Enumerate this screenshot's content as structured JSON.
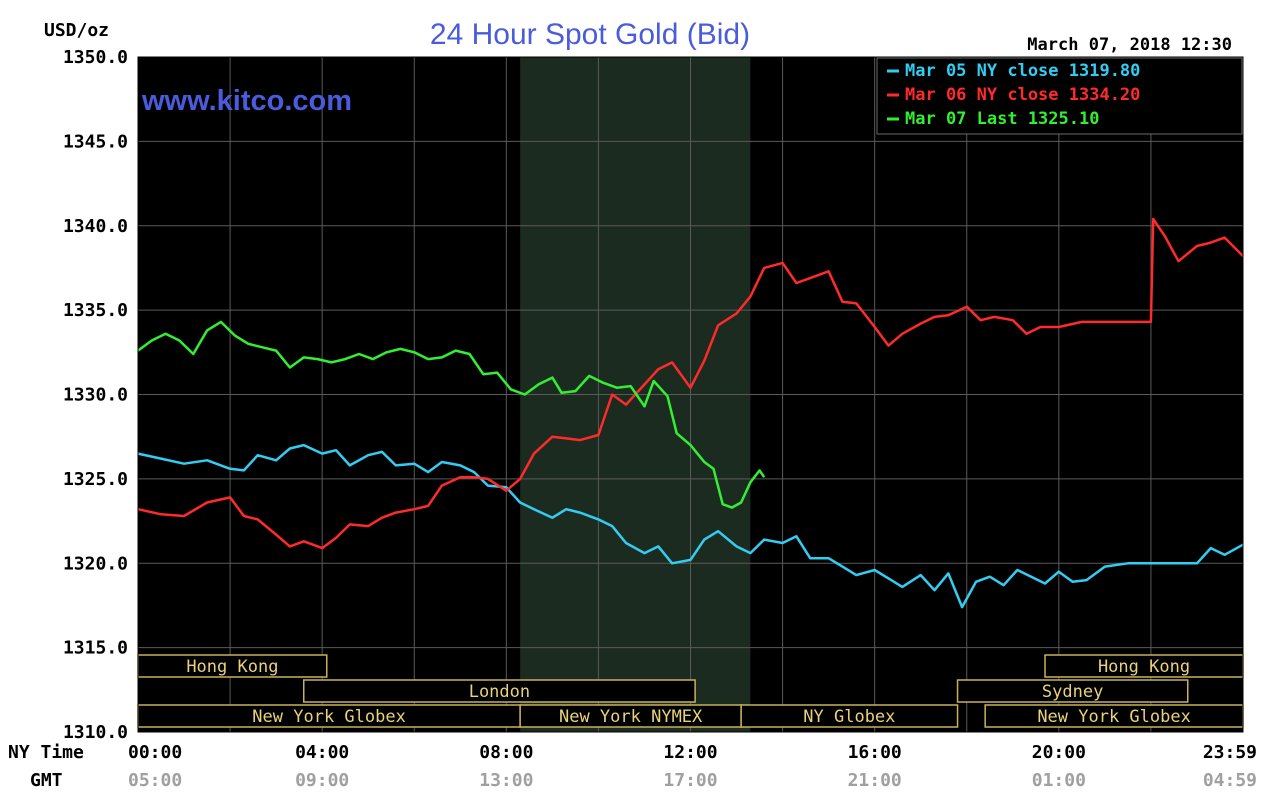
{
  "chart_data": {
    "type": "line",
    "title": "24 Hour Spot Gold (Bid)",
    "watermark": "www.kitco.com",
    "ylabel": "USD/oz",
    "date_label": "March 07, 2018 12:30",
    "ylim": [
      1310,
      1350
    ],
    "y_ticks": [
      "1350.0",
      "1345.0",
      "1340.0",
      "1335.0",
      "1330.0",
      "1325.0",
      "1320.0",
      "1315.0",
      "1310.0"
    ],
    "xlim": [
      0,
      24
    ],
    "x_row_labels": [
      "NY Time",
      "GMT"
    ],
    "x_ticks_ny": [
      "00:00",
      "04:00",
      "08:00",
      "12:00",
      "16:00",
      "20:00",
      "23:59"
    ],
    "x_ticks_gmt": [
      "05:00",
      "09:00",
      "13:00",
      "17:00",
      "21:00",
      "01:00",
      "04:59"
    ],
    "nymex_shade": [
      8.3,
      13.3
    ],
    "grid": true,
    "legend_position": "top-right",
    "series": [
      {
        "name": "Mar 05 NY close 1319.80",
        "color": "#33ccf2",
        "points": [
          [
            0,
            1326.5
          ],
          [
            0.5,
            1326.2
          ],
          [
            1,
            1325.9
          ],
          [
            1.5,
            1326.1
          ],
          [
            2,
            1325.6
          ],
          [
            2.3,
            1325.5
          ],
          [
            2.6,
            1326.4
          ],
          [
            3,
            1326.1
          ],
          [
            3.3,
            1326.8
          ],
          [
            3.6,
            1327.0
          ],
          [
            4,
            1326.5
          ],
          [
            4.3,
            1326.7
          ],
          [
            4.6,
            1325.8
          ],
          [
            5,
            1326.4
          ],
          [
            5.3,
            1326.6
          ],
          [
            5.6,
            1325.8
          ],
          [
            6,
            1325.9
          ],
          [
            6.3,
            1325.4
          ],
          [
            6.6,
            1326.0
          ],
          [
            7,
            1325.8
          ],
          [
            7.3,
            1325.4
          ],
          [
            7.6,
            1324.6
          ],
          [
            8,
            1324.5
          ],
          [
            8.3,
            1323.6
          ],
          [
            8.6,
            1323.2
          ],
          [
            9,
            1322.7
          ],
          [
            9.3,
            1323.2
          ],
          [
            9.6,
            1323.0
          ],
          [
            10,
            1322.6
          ],
          [
            10.3,
            1322.2
          ],
          [
            10.6,
            1321.2
          ],
          [
            11,
            1320.6
          ],
          [
            11.3,
            1321.0
          ],
          [
            11.6,
            1320.0
          ],
          [
            12,
            1320.2
          ],
          [
            12.3,
            1321.4
          ],
          [
            12.6,
            1321.9
          ],
          [
            13,
            1321.0
          ],
          [
            13.3,
            1320.6
          ],
          [
            13.6,
            1321.4
          ],
          [
            14,
            1321.2
          ],
          [
            14.3,
            1321.6
          ],
          [
            14.6,
            1320.3
          ],
          [
            15,
            1320.3
          ],
          [
            15.3,
            1319.8
          ],
          [
            15.6,
            1319.3
          ],
          [
            16,
            1319.6
          ],
          [
            16.3,
            1319.1
          ],
          [
            16.6,
            1318.6
          ],
          [
            17,
            1319.3
          ],
          [
            17.3,
            1318.4
          ],
          [
            17.6,
            1319.4
          ],
          [
            17.9,
            1317.4
          ],
          [
            18.2,
            1318.9
          ],
          [
            18.5,
            1319.2
          ],
          [
            18.8,
            1318.7
          ],
          [
            19.1,
            1319.6
          ],
          [
            19.4,
            1319.2
          ],
          [
            19.7,
            1318.8
          ],
          [
            20,
            1319.5
          ],
          [
            20.3,
            1318.9
          ],
          [
            20.6,
            1319.0
          ],
          [
            21,
            1319.8
          ],
          [
            21.5,
            1320.0
          ],
          [
            22,
            1320.0
          ],
          [
            22.5,
            1320.0
          ],
          [
            23,
            1320.0
          ],
          [
            23.3,
            1320.9
          ],
          [
            23.6,
            1320.5
          ],
          [
            24,
            1321.1
          ]
        ]
      },
      {
        "name": "Mar 06 NY close 1334.20",
        "color": "#ff2a2a",
        "points": [
          [
            0,
            1323.2
          ],
          [
            0.5,
            1322.9
          ],
          [
            1,
            1322.8
          ],
          [
            1.5,
            1323.6
          ],
          [
            2,
            1323.9
          ],
          [
            2.3,
            1322.8
          ],
          [
            2.6,
            1322.6
          ],
          [
            3,
            1321.7
          ],
          [
            3.3,
            1321.0
          ],
          [
            3.6,
            1321.3
          ],
          [
            4,
            1320.9
          ],
          [
            4.3,
            1321.5
          ],
          [
            4.6,
            1322.3
          ],
          [
            5,
            1322.2
          ],
          [
            5.3,
            1322.7
          ],
          [
            5.6,
            1323.0
          ],
          [
            6,
            1323.2
          ],
          [
            6.3,
            1323.4
          ],
          [
            6.6,
            1324.6
          ],
          [
            7,
            1325.1
          ],
          [
            7.3,
            1325.1
          ],
          [
            7.6,
            1325.0
          ],
          [
            8,
            1324.3
          ],
          [
            8.3,
            1325.0
          ],
          [
            8.6,
            1326.5
          ],
          [
            9,
            1327.5
          ],
          [
            9.3,
            1327.4
          ],
          [
            9.6,
            1327.3
          ],
          [
            10,
            1327.6
          ],
          [
            10.3,
            1330.0
          ],
          [
            10.6,
            1329.4
          ],
          [
            11,
            1330.6
          ],
          [
            11.3,
            1331.5
          ],
          [
            11.6,
            1331.9
          ],
          [
            12,
            1330.4
          ],
          [
            12.3,
            1332.0
          ],
          [
            12.6,
            1334.1
          ],
          [
            13,
            1334.8
          ],
          [
            13.3,
            1335.8
          ],
          [
            13.6,
            1337.5
          ],
          [
            14,
            1337.8
          ],
          [
            14.3,
            1336.6
          ],
          [
            14.6,
            1336.9
          ],
          [
            15,
            1337.3
          ],
          [
            15.3,
            1335.5
          ],
          [
            15.6,
            1335.4
          ],
          [
            16,
            1334.0
          ],
          [
            16.3,
            1332.9
          ],
          [
            16.6,
            1333.6
          ],
          [
            17,
            1334.2
          ],
          [
            17.3,
            1334.6
          ],
          [
            17.6,
            1334.7
          ],
          [
            18,
            1335.2
          ],
          [
            18.3,
            1334.4
          ],
          [
            18.6,
            1334.6
          ],
          [
            19,
            1334.4
          ],
          [
            19.3,
            1333.6
          ],
          [
            19.6,
            1334.0
          ],
          [
            20,
            1334.0
          ],
          [
            20.5,
            1334.3
          ],
          [
            21,
            1334.3
          ],
          [
            21.5,
            1334.3
          ],
          [
            22,
            1334.3
          ],
          [
            22.05,
            1340.4
          ],
          [
            22.3,
            1339.4
          ],
          [
            22.6,
            1337.9
          ],
          [
            23,
            1338.8
          ],
          [
            23.3,
            1339.0
          ],
          [
            23.6,
            1339.3
          ],
          [
            24,
            1338.2
          ]
        ]
      },
      {
        "name": "Mar 07 Last 1325.10",
        "color": "#33ee33",
        "points": [
          [
            0,
            1332.6
          ],
          [
            0.3,
            1333.2
          ],
          [
            0.6,
            1333.6
          ],
          [
            0.9,
            1333.2
          ],
          [
            1.2,
            1332.4
          ],
          [
            1.5,
            1333.8
          ],
          [
            1.8,
            1334.3
          ],
          [
            2.1,
            1333.5
          ],
          [
            2.4,
            1333.0
          ],
          [
            2.7,
            1332.8
          ],
          [
            3,
            1332.6
          ],
          [
            3.3,
            1331.6
          ],
          [
            3.6,
            1332.2
          ],
          [
            3.9,
            1332.1
          ],
          [
            4.2,
            1331.9
          ],
          [
            4.5,
            1332.1
          ],
          [
            4.8,
            1332.4
          ],
          [
            5.1,
            1332.1
          ],
          [
            5.4,
            1332.5
          ],
          [
            5.7,
            1332.7
          ],
          [
            6,
            1332.5
          ],
          [
            6.3,
            1332.1
          ],
          [
            6.6,
            1332.2
          ],
          [
            6.9,
            1332.6
          ],
          [
            7.2,
            1332.4
          ],
          [
            7.5,
            1331.2
          ],
          [
            7.8,
            1331.3
          ],
          [
            8.1,
            1330.3
          ],
          [
            8.4,
            1330.0
          ],
          [
            8.7,
            1330.6
          ],
          [
            9,
            1331.0
          ],
          [
            9.2,
            1330.1
          ],
          [
            9.5,
            1330.2
          ],
          [
            9.8,
            1331.1
          ],
          [
            10.1,
            1330.7
          ],
          [
            10.4,
            1330.4
          ],
          [
            10.7,
            1330.5
          ],
          [
            11.0,
            1329.3
          ],
          [
            11.2,
            1330.8
          ],
          [
            11.5,
            1329.9
          ],
          [
            11.7,
            1327.7
          ],
          [
            12.0,
            1327.0
          ],
          [
            12.3,
            1326.0
          ],
          [
            12.5,
            1325.6
          ],
          [
            12.7,
            1323.5
          ],
          [
            12.9,
            1323.3
          ],
          [
            13.1,
            1323.6
          ],
          [
            13.3,
            1324.8
          ],
          [
            13.5,
            1325.5
          ],
          [
            13.6,
            1325.1
          ]
        ]
      }
    ],
    "sessions": [
      {
        "label": "Hong Kong",
        "start": 0,
        "end": 4.1,
        "row": 0
      },
      {
        "label": "Hong Kong",
        "start": 19.7,
        "end": 24.2,
        "row": 0
      },
      {
        "label": "London",
        "start": 3.6,
        "end": 12.1,
        "row": 1
      },
      {
        "label": "Sydney",
        "start": 17.8,
        "end": 22.8,
        "row": 1
      },
      {
        "label": "New York Globex",
        "start": 0,
        "end": 8.3,
        "row": 2
      },
      {
        "label": "New York NYMEX",
        "start": 8.3,
        "end": 13.1,
        "row": 2
      },
      {
        "label": "NY Globex",
        "start": 13.1,
        "end": 17.8,
        "row": 2
      },
      {
        "label": "New York Globex",
        "start": 18.4,
        "end": 24.2,
        "row": 2
      }
    ]
  }
}
